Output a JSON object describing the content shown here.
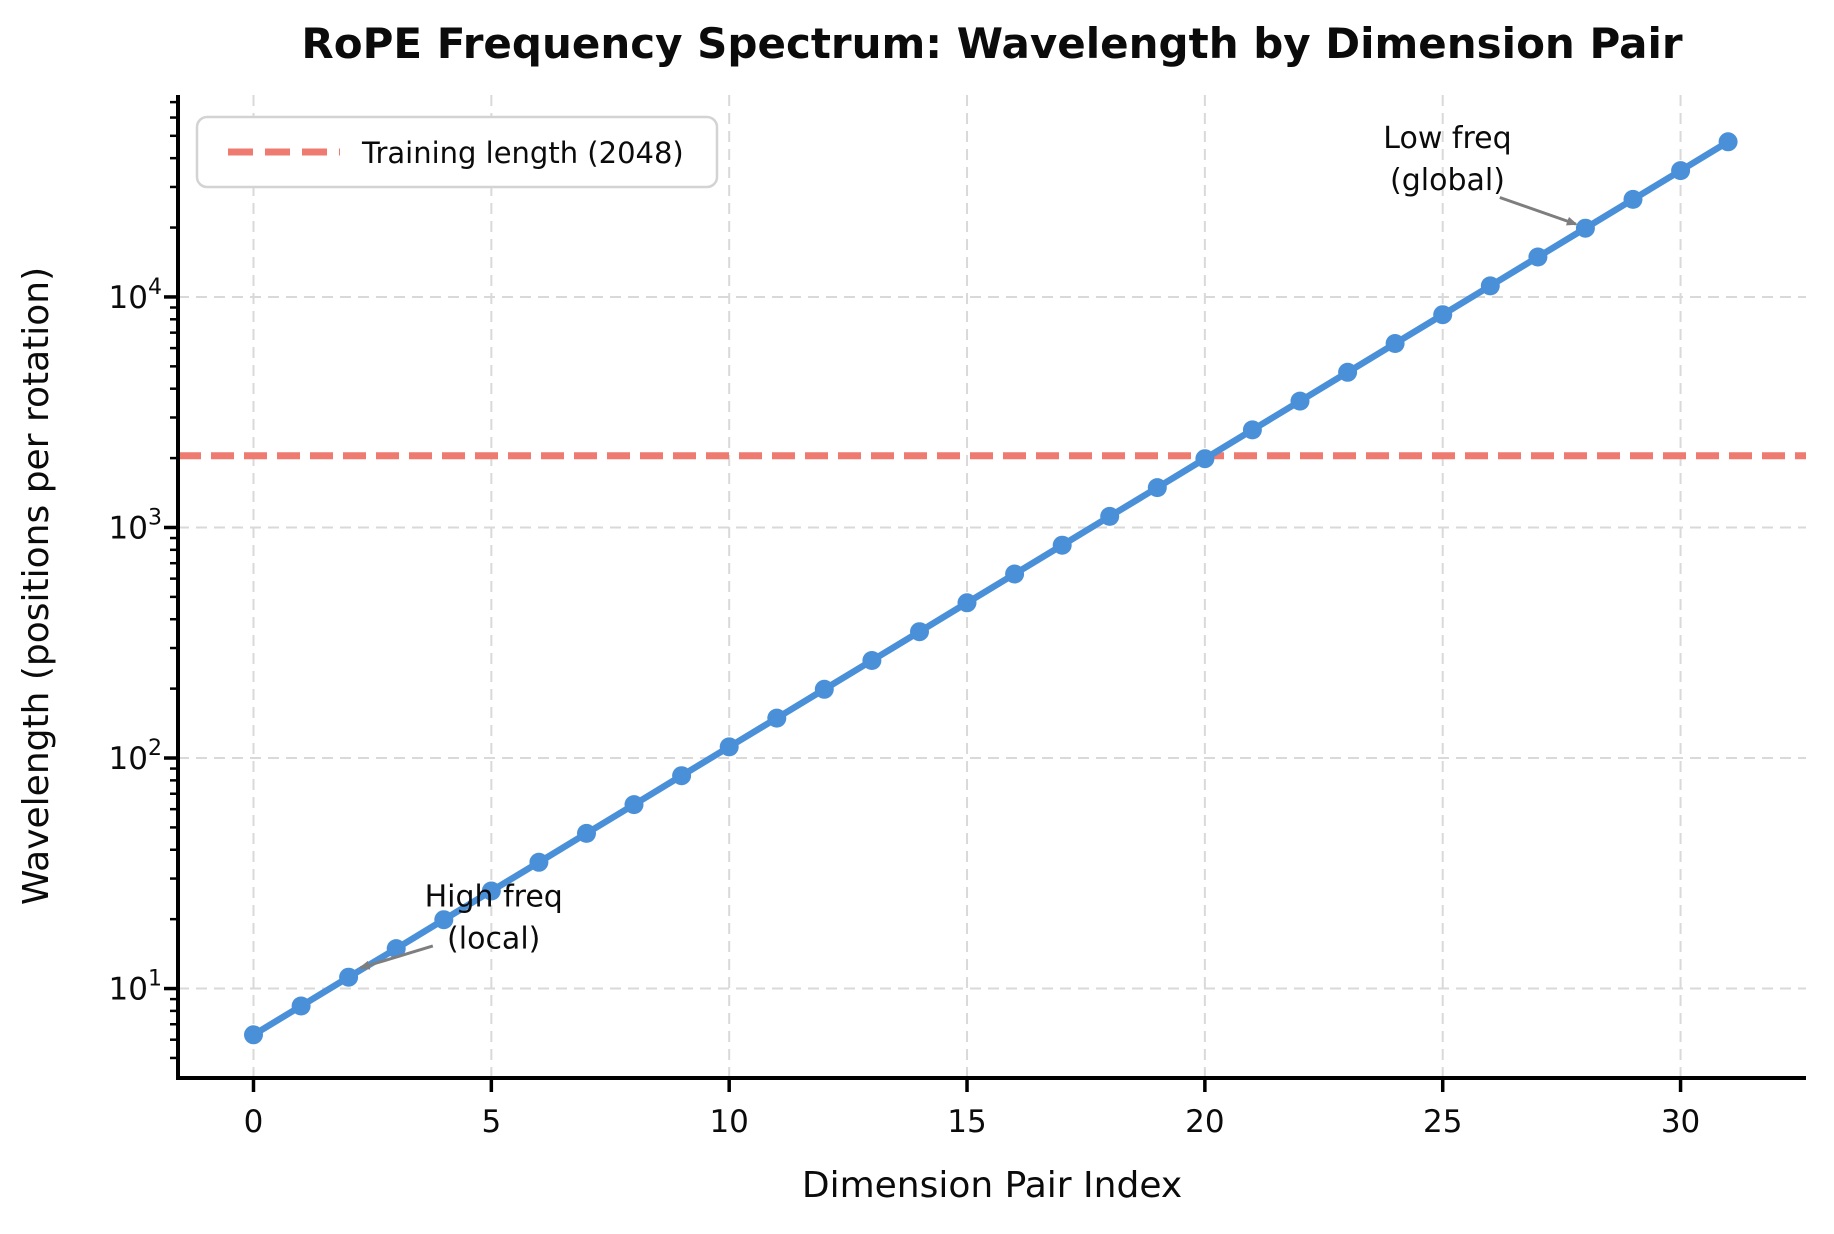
{
  "chart_data": {
    "type": "line",
    "title": "RoPE Frequency Spectrum: Wavelength by Dimension Pair",
    "xlabel": "Dimension Pair Index",
    "ylabel": "Wavelength (positions per rotation)",
    "y_scale": "log10",
    "grid": "major-dashed",
    "series_color": "#4a90d9",
    "x": [
      0,
      1,
      2,
      3,
      4,
      5,
      6,
      7,
      8,
      9,
      10,
      11,
      12,
      13,
      14,
      15,
      16,
      17,
      18,
      19,
      20,
      21,
      22,
      23,
      24,
      25,
      26,
      27,
      28,
      29,
      30,
      31
    ],
    "values": [
      6.3,
      8.4,
      11.2,
      14.9,
      19.9,
      26.5,
      35.3,
      47.1,
      62.8,
      83.8,
      111.7,
      149.0,
      198.7,
      264.9,
      353.3,
      471.2,
      628.3,
      837.8,
      1117.2,
      1489.8,
      1986.9,
      2649.4,
      3533.1,
      4711.5,
      6283.2,
      8378.4,
      11172.1,
      14897.7,
      19869.2,
      26493.6,
      35330.7,
      47115.0
    ],
    "x_ticks": [
      0,
      5,
      10,
      15,
      20,
      25,
      30
    ],
    "y_ticks": [
      {
        "value": 10,
        "label_base": "10",
        "label_exp": "1"
      },
      {
        "value": 100,
        "label_base": "10",
        "label_exp": "2"
      },
      {
        "value": 1000,
        "label_base": "10",
        "label_exp": "3"
      },
      {
        "value": 10000,
        "label_base": "10",
        "label_exp": "4"
      }
    ],
    "y_minor_multiples": [
      2,
      3,
      4,
      5,
      6,
      7,
      8,
      9
    ],
    "xlim": [
      -1.587,
      32.637
    ],
    "ylim_log10": [
      0.612,
      4.876
    ],
    "reference_line": {
      "legend_label": "Training length (2048)",
      "value": 2048,
      "color": "#ee7a70"
    },
    "legend_position": "upper-left",
    "annotations": [
      {
        "lines": [
          "High freq",
          "(local)"
        ],
        "target_point_index": 2,
        "text": {
          "x": 5.05,
          "y": 20.5
        },
        "arrow": {
          "from": {
            "x": 3.77,
            "y": 15.3
          },
          "to": {
            "x": 2.25,
            "y": 12.3
          }
        }
      },
      {
        "lines": [
          "Low freq",
          "(global)"
        ],
        "target_point_index": 28,
        "text": {
          "x": 25.1,
          "y": 40100
        },
        "arrow": {
          "from": {
            "x": 26.2,
            "y": 27000
          },
          "to": {
            "x": 27.8,
            "y": 20700
          }
        }
      }
    ]
  }
}
